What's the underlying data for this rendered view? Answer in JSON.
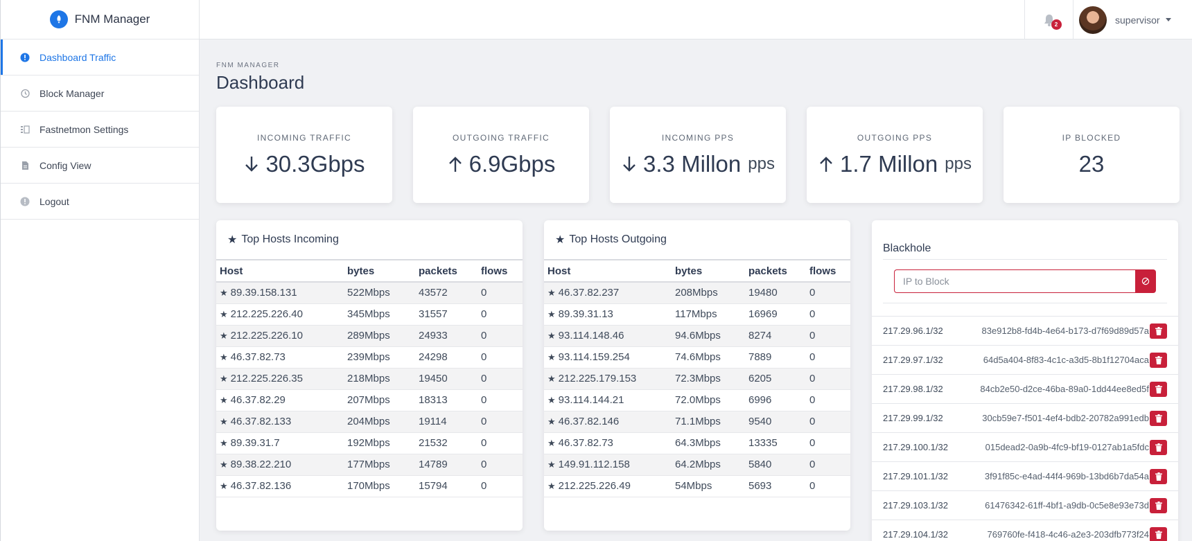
{
  "brand": {
    "title": "FNM Manager"
  },
  "sidebar": {
    "items": [
      {
        "label": "Dashboard Traffic",
        "icon": "alert-circle-icon",
        "active": true
      },
      {
        "label": "Block Manager",
        "icon": "history-icon",
        "active": false
      },
      {
        "label": "Fastnetmon Settings",
        "icon": "list-settings-icon",
        "active": false
      },
      {
        "label": "Config View",
        "icon": "file-icon",
        "active": false
      },
      {
        "label": "Logout",
        "icon": "exclamation-circle-icon",
        "active": false
      }
    ]
  },
  "header": {
    "notifications_count": "2",
    "user_name": "supervisor"
  },
  "page": {
    "subtitle": "FNM MANAGER",
    "title": "Dashboard"
  },
  "stats": [
    {
      "label": "INCOMING TRAFFIC",
      "value": "30.3Gbps",
      "unit": "",
      "arrow": "down"
    },
    {
      "label": "OUTGOING TRAFFIC",
      "value": "6.9Gbps",
      "unit": "",
      "arrow": "up"
    },
    {
      "label": "INCOMING PPS",
      "value": "3.3 Millon",
      "unit": "pps",
      "arrow": "down"
    },
    {
      "label": "OUTGOING PPS",
      "value": "1.7 Millon",
      "unit": "pps",
      "arrow": "up"
    },
    {
      "label": "IP BLOCKED",
      "value": "23",
      "unit": "",
      "arrow": ""
    }
  ],
  "incoming": {
    "title": "Top Hosts Incoming",
    "columns": [
      "Host",
      "bytes",
      "packets",
      "flows"
    ],
    "rows": [
      [
        "89.39.158.131",
        "522Mbps",
        "43572",
        "0"
      ],
      [
        "212.225.226.40",
        "345Mbps",
        "31557",
        "0"
      ],
      [
        "212.225.226.10",
        "289Mbps",
        "24933",
        "0"
      ],
      [
        "46.37.82.73",
        "239Mbps",
        "24298",
        "0"
      ],
      [
        "212.225.226.35",
        "218Mbps",
        "19450",
        "0"
      ],
      [
        "46.37.82.29",
        "207Mbps",
        "18313",
        "0"
      ],
      [
        "46.37.82.133",
        "204Mbps",
        "19114",
        "0"
      ],
      [
        "89.39.31.7",
        "192Mbps",
        "21532",
        "0"
      ],
      [
        "89.38.22.210",
        "177Mbps",
        "14789",
        "0"
      ],
      [
        "46.37.82.136",
        "170Mbps",
        "15794",
        "0"
      ]
    ]
  },
  "outgoing": {
    "title": "Top Hosts Outgoing",
    "columns": [
      "Host",
      "bytes",
      "packets",
      "flows"
    ],
    "rows": [
      [
        "46.37.82.237",
        "208Mbps",
        "19480",
        "0"
      ],
      [
        "89.39.31.13",
        "117Mbps",
        "16969",
        "0"
      ],
      [
        "93.114.148.46",
        "94.6Mbps",
        "8274",
        "0"
      ],
      [
        "93.114.159.254",
        "74.6Mbps",
        "7889",
        "0"
      ],
      [
        "212.225.179.153",
        "72.3Mbps",
        "6205",
        "0"
      ],
      [
        "93.114.144.21",
        "72.0Mbps",
        "6996",
        "0"
      ],
      [
        "46.37.82.146",
        "71.1Mbps",
        "9540",
        "0"
      ],
      [
        "46.37.82.73",
        "64.3Mbps",
        "13335",
        "0"
      ],
      [
        "149.91.112.158",
        "64.2Mbps",
        "5840",
        "0"
      ],
      [
        "212.225.226.49",
        "54Mbps",
        "5693",
        "0"
      ]
    ]
  },
  "blackhole": {
    "title": "Blackhole",
    "input_placeholder": "IP to Block",
    "entries": [
      {
        "ip": "217.29.96.1/32",
        "uuid": "83e912b8-fd4b-4e64-b173-d7f69d89d57a"
      },
      {
        "ip": "217.29.97.1/32",
        "uuid": "64d5a404-8f83-4c1c-a3d5-8b1f12704aca"
      },
      {
        "ip": "217.29.98.1/32",
        "uuid": "84cb2e50-d2ce-46ba-89a0-1dd44ee8ed5f"
      },
      {
        "ip": "217.29.99.1/32",
        "uuid": "30cb59e7-f501-4ef4-bdb2-20782a991edb"
      },
      {
        "ip": "217.29.100.1/32",
        "uuid": "015dead2-0a9b-4fc9-bf19-0127ab1a5fdc"
      },
      {
        "ip": "217.29.101.1/32",
        "uuid": "3f91f85c-e4ad-44f4-969b-13bd6b7da54a"
      },
      {
        "ip": "217.29.103.1/32",
        "uuid": "61476342-61ff-4bf1-a9db-0c5e8e93e73d"
      },
      {
        "ip": "217.29.104.1/32",
        "uuid": "769760fe-f418-4c46-a2e3-203dfb773f24"
      }
    ]
  },
  "colors": {
    "accent": "#1e76e6",
    "danger": "#c8203a"
  }
}
